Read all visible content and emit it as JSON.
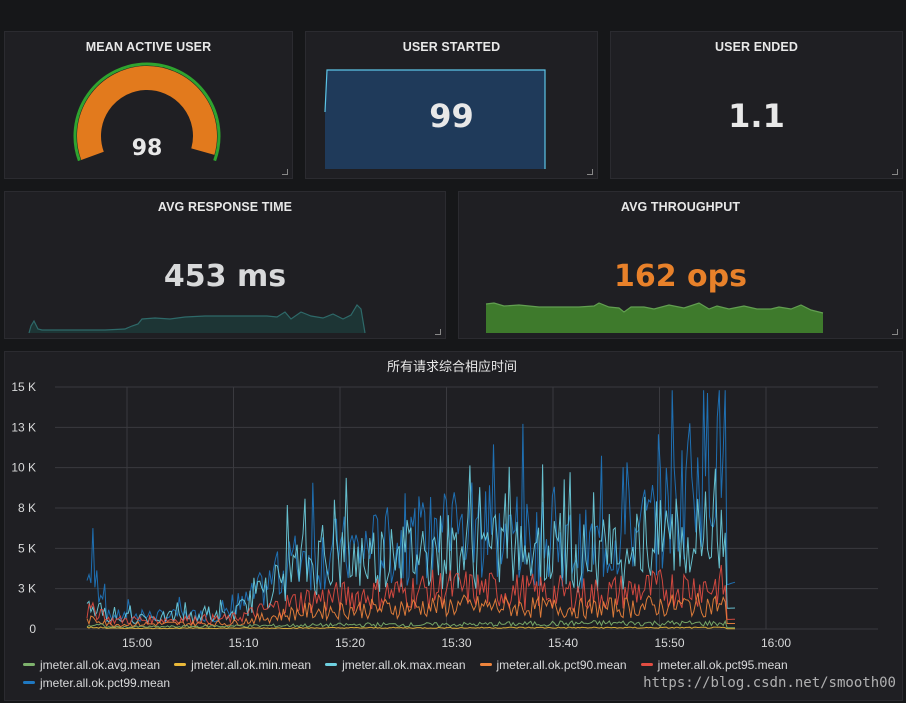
{
  "panels": {
    "mean_active_user": {
      "title": "MEAN ACTIVE USER",
      "value": "98",
      "gauge_fraction": 0.98
    },
    "user_started": {
      "title": "USER STARTED",
      "value": "99"
    },
    "user_ended": {
      "title": "USER ENDED",
      "value": "1.1"
    },
    "avg_response_time": {
      "title": "AVG RESPONSE TIME",
      "value": "453 ms"
    },
    "avg_throughput": {
      "title": "AVG THROUGHPUT",
      "value": "162 ops"
    }
  },
  "colors": {
    "gauge_orange": "#e27a1d",
    "gauge_green": "#2fa42f",
    "sparkline_blue_fill": "#1f3a5a",
    "sparkline_blue_line": "#5cc4e6",
    "throughput_orange": "#e8812a",
    "throughput_fill": "#3e7a2c",
    "response_fill": "#1d3535",
    "response_line": "#2e6969"
  },
  "chart_data": {
    "type": "line",
    "title": "所有请求综合相应时间",
    "xlabel": "",
    "ylabel": "",
    "x_ticks": [
      "15:00",
      "15:10",
      "15:20",
      "15:30",
      "15:40",
      "15:50",
      "16:00"
    ],
    "y_ticks": [
      "0",
      "3 K",
      "5 K",
      "8 K",
      "10 K",
      "13 K",
      "15 K"
    ],
    "ylim": [
      0,
      15000
    ],
    "grid": true,
    "legend_position": "bottom",
    "series": [
      {
        "name": "jmeter.all.ok.avg.mean",
        "color": "#7eb26d",
        "values": [
          120,
          150,
          200,
          250,
          300,
          300,
          350,
          400,
          400,
          380
        ]
      },
      {
        "name": "jmeter.all.ok.min.mean",
        "color": "#eab839",
        "values": [
          50,
          50,
          60,
          70,
          80,
          80,
          90,
          90,
          90,
          90
        ]
      },
      {
        "name": "jmeter.all.ok.max.mean",
        "color": "#6ed0e0",
        "values": [
          700,
          800,
          900,
          4500,
          5000,
          5500,
          5200,
          5000,
          6000,
          6500
        ]
      },
      {
        "name": "jmeter.all.ok.pct90.mean",
        "color": "#ef843c",
        "values": [
          300,
          350,
          400,
          1200,
          1400,
          1600,
          1500,
          1400,
          1600,
          1700
        ]
      },
      {
        "name": "jmeter.all.ok.pct95.mean",
        "color": "#e24d42",
        "values": [
          600,
          650,
          700,
          2000,
          2400,
          2800,
          2600,
          2400,
          2800,
          3000
        ]
      },
      {
        "name": "jmeter.all.ok.pct99.mean",
        "color": "#1f78c1",
        "values": [
          900,
          900,
          1000,
          5000,
          5500,
          6500,
          6000,
          5500,
          7500,
          14500
        ]
      }
    ]
  },
  "watermark": "https://blog.csdn.net/smooth00"
}
